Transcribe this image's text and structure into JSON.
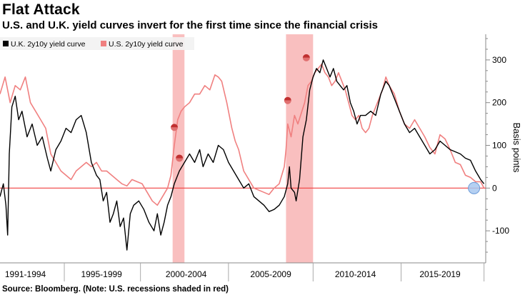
{
  "header": {
    "title": "Flat Attack",
    "subtitle": "U.S. and U.K. yield curves invert for the first time since the financial crisis"
  },
  "footer": {
    "source": "Source: Bloomberg. (Note: U.S. recessions shaded in red)"
  },
  "colors": {
    "uk_series": "#000000",
    "us_series": "#f08080",
    "recession": "#f8b4b4",
    "zero_line": "#f04040",
    "marker": "#c03030",
    "highlight": "#a8c8f0"
  },
  "chart_data": {
    "type": "line",
    "ylabel": "Basis points",
    "ylim": [
      -175,
      360
    ],
    "xlim": [
      1991.0,
      2019.7
    ],
    "yticks": [
      300,
      200,
      100,
      0,
      -100
    ],
    "ytick_labels": [
      "300",
      "200",
      "100",
      "0",
      "-100"
    ],
    "xtick_labels": [
      "1991-1994",
      "1995-1999",
      "2000-2004",
      "2005-2009",
      "2010-2014",
      "2015-2019"
    ],
    "xtick_centers": [
      1992.5,
      1997.0,
      2002.0,
      2007.0,
      2012.0,
      2017.0
    ],
    "xtick_boundaries": [
      1994.8,
      1999.3,
      2004.5,
      2009.5,
      2014.7,
      2019.6
    ],
    "legend": [
      "U.K. 2y10y yield curve",
      "U.S. 2y10y yield curve"
    ],
    "legend_position": "top-left",
    "recessions": [
      [
        2001.2,
        2001.9
      ],
      [
        2007.9,
        2009.5
      ]
    ],
    "event_markers": [
      {
        "x": 2001.3,
        "y": 142
      },
      {
        "x": 2001.6,
        "y": 70
      },
      {
        "x": 2008.0,
        "y": 205
      },
      {
        "x": 2009.1,
        "y": 305
      }
    ],
    "highlight_point": {
      "x": 2019.6,
      "y": 0
    },
    "series": [
      {
        "name": "U.K. 2y10y yield curve",
        "points": [
          [
            1991.0,
            -20
          ],
          [
            1991.2,
            10
          ],
          [
            1991.35,
            -40
          ],
          [
            1991.45,
            -110
          ],
          [
            1991.55,
            80
          ],
          [
            1991.7,
            190
          ],
          [
            1991.9,
            215
          ],
          [
            1992.1,
            160
          ],
          [
            1992.3,
            180
          ],
          [
            1992.6,
            120
          ],
          [
            1992.9,
            150
          ],
          [
            1993.2,
            100
          ],
          [
            1993.5,
            120
          ],
          [
            1993.8,
            70
          ],
          [
            1994.0,
            40
          ],
          [
            1994.3,
            90
          ],
          [
            1994.6,
            110
          ],
          [
            1994.9,
            140
          ],
          [
            1995.2,
            130
          ],
          [
            1995.5,
            160
          ],
          [
            1995.8,
            170
          ],
          [
            1996.1,
            130
          ],
          [
            1996.4,
            60
          ],
          [
            1996.7,
            30
          ],
          [
            1996.9,
            20
          ],
          [
            1997.1,
            -30
          ],
          [
            1997.3,
            -10
          ],
          [
            1997.5,
            -80
          ],
          [
            1997.7,
            -60
          ],
          [
            1997.9,
            -30
          ],
          [
            1998.1,
            -90
          ],
          [
            1998.3,
            -70
          ],
          [
            1998.5,
            -145
          ],
          [
            1998.7,
            -60
          ],
          [
            1998.9,
            -40
          ],
          [
            1999.2,
            -30
          ],
          [
            1999.5,
            -50
          ],
          [
            1999.8,
            -80
          ],
          [
            2000.1,
            -100
          ],
          [
            2000.3,
            -60
          ],
          [
            2000.5,
            -110
          ],
          [
            2000.7,
            -80
          ],
          [
            2000.9,
            -40
          ],
          [
            2001.1,
            -20
          ],
          [
            2001.3,
            10
          ],
          [
            2001.6,
            40
          ],
          [
            2001.9,
            60
          ],
          [
            2002.2,
            80
          ],
          [
            2002.5,
            60
          ],
          [
            2002.8,
            90
          ],
          [
            2003.0,
            50
          ],
          [
            2003.3,
            80
          ],
          [
            2003.6,
            60
          ],
          [
            2003.9,
            100
          ],
          [
            2004.2,
            90
          ],
          [
            2004.5,
            60
          ],
          [
            2004.8,
            40
          ],
          [
            2005.1,
            20
          ],
          [
            2005.4,
            0
          ],
          [
            2005.7,
            10
          ],
          [
            2006.0,
            -20
          ],
          [
            2006.3,
            -30
          ],
          [
            2006.6,
            -40
          ],
          [
            2006.9,
            -55
          ],
          [
            2007.2,
            -50
          ],
          [
            2007.5,
            -40
          ],
          [
            2007.8,
            -20
          ],
          [
            2008.0,
            10
          ],
          [
            2008.1,
            50
          ],
          [
            2008.2,
            0
          ],
          [
            2008.4,
            -10
          ],
          [
            2008.5,
            -30
          ],
          [
            2008.7,
            20
          ],
          [
            2008.9,
            120
          ],
          [
            2009.1,
            160
          ],
          [
            2009.3,
            230
          ],
          [
            2009.5,
            260
          ],
          [
            2009.7,
            280
          ],
          [
            2009.9,
            270
          ],
          [
            2010.1,
            300
          ],
          [
            2010.3,
            280
          ],
          [
            2010.5,
            260
          ],
          [
            2010.7,
            280
          ],
          [
            2010.9,
            250
          ],
          [
            2011.1,
            240
          ],
          [
            2011.3,
            230
          ],
          [
            2011.5,
            240
          ],
          [
            2011.7,
            200
          ],
          [
            2011.9,
            180
          ],
          [
            2012.1,
            150
          ],
          [
            2012.3,
            170
          ],
          [
            2012.6,
            170
          ],
          [
            2012.9,
            180
          ],
          [
            2013.2,
            170
          ],
          [
            2013.5,
            220
          ],
          [
            2013.8,
            250
          ],
          [
            2014.0,
            240
          ],
          [
            2014.3,
            210
          ],
          [
            2014.6,
            180
          ],
          [
            2014.9,
            150
          ],
          [
            2015.2,
            130
          ],
          [
            2015.5,
            140
          ],
          [
            2015.8,
            120
          ],
          [
            2016.1,
            100
          ],
          [
            2016.4,
            80
          ],
          [
            2016.7,
            90
          ],
          [
            2017.0,
            110
          ],
          [
            2017.3,
            100
          ],
          [
            2017.6,
            90
          ],
          [
            2017.9,
            85
          ],
          [
            2018.2,
            80
          ],
          [
            2018.5,
            70
          ],
          [
            2018.8,
            65
          ],
          [
            2019.1,
            40
          ],
          [
            2019.4,
            20
          ],
          [
            2019.6,
            10
          ]
        ]
      },
      {
        "name": "U.S. 2y10y yield curve",
        "points": [
          [
            1991.0,
            220
          ],
          [
            1991.3,
            260
          ],
          [
            1991.6,
            200
          ],
          [
            1991.9,
            240
          ],
          [
            1992.2,
            230
          ],
          [
            1992.5,
            260
          ],
          [
            1992.8,
            200
          ],
          [
            1993.1,
            180
          ],
          [
            1993.4,
            160
          ],
          [
            1993.7,
            140
          ],
          [
            1994.0,
            80
          ],
          [
            1994.3,
            60
          ],
          [
            1994.6,
            40
          ],
          [
            1994.9,
            30
          ],
          [
            1995.2,
            20
          ],
          [
            1995.5,
            40
          ],
          [
            1995.8,
            50
          ],
          [
            1996.1,
            60
          ],
          [
            1996.4,
            50
          ],
          [
            1996.7,
            60
          ],
          [
            1997.0,
            40
          ],
          [
            1997.3,
            40
          ],
          [
            1997.6,
            30
          ],
          [
            1997.9,
            20
          ],
          [
            1998.2,
            10
          ],
          [
            1998.5,
            5
          ],
          [
            1998.8,
            20
          ],
          [
            1999.1,
            15
          ],
          [
            1999.4,
            10
          ],
          [
            1999.7,
            -10
          ],
          [
            2000.0,
            -30
          ],
          [
            2000.3,
            -40
          ],
          [
            2000.6,
            -20
          ],
          [
            2000.9,
            0
          ],
          [
            2001.1,
            30
          ],
          [
            2001.3,
            100
          ],
          [
            2001.5,
            160
          ],
          [
            2001.7,
            180
          ],
          [
            2001.9,
            190
          ],
          [
            2002.2,
            200
          ],
          [
            2002.5,
            220
          ],
          [
            2002.8,
            220
          ],
          [
            2003.1,
            240
          ],
          [
            2003.4,
            230
          ],
          [
            2003.7,
            265
          ],
          [
            2003.9,
            260
          ],
          [
            2004.1,
            250
          ],
          [
            2004.4,
            200
          ],
          [
            2004.7,
            140
          ],
          [
            2004.9,
            110
          ],
          [
            2005.1,
            90
          ],
          [
            2005.4,
            40
          ],
          [
            2005.7,
            20
          ],
          [
            2006.0,
            0
          ],
          [
            2006.3,
            -5
          ],
          [
            2006.6,
            -10
          ],
          [
            2006.9,
            -15
          ],
          [
            2007.2,
            0
          ],
          [
            2007.5,
            10
          ],
          [
            2007.8,
            50
          ],
          [
            2007.9,
            90
          ],
          [
            2008.0,
            150
          ],
          [
            2008.2,
            120
          ],
          [
            2008.4,
            170
          ],
          [
            2008.6,
            150
          ],
          [
            2008.8,
            175
          ],
          [
            2009.0,
            200
          ],
          [
            2009.2,
            240
          ],
          [
            2009.4,
            250
          ],
          [
            2009.6,
            270
          ],
          [
            2009.8,
            280
          ],
          [
            2010.0,
            290
          ],
          [
            2010.2,
            270
          ],
          [
            2010.4,
            260
          ],
          [
            2010.6,
            240
          ],
          [
            2010.8,
            250
          ],
          [
            2011.0,
            270
          ],
          [
            2011.2,
            250
          ],
          [
            2011.4,
            230
          ],
          [
            2011.6,
            200
          ],
          [
            2011.8,
            170
          ],
          [
            2012.0,
            160
          ],
          [
            2012.2,
            170
          ],
          [
            2012.4,
            140
          ],
          [
            2012.6,
            130
          ],
          [
            2012.8,
            140
          ],
          [
            2013.0,
            170
          ],
          [
            2013.3,
            200
          ],
          [
            2013.6,
            230
          ],
          [
            2013.8,
            260
          ],
          [
            2014.0,
            240
          ],
          [
            2014.3,
            220
          ],
          [
            2014.6,
            180
          ],
          [
            2014.9,
            150
          ],
          [
            2015.2,
            140
          ],
          [
            2015.5,
            160
          ],
          [
            2015.8,
            140
          ],
          [
            2016.1,
            120
          ],
          [
            2016.4,
            95
          ],
          [
            2016.7,
            80
          ],
          [
            2017.0,
            125
          ],
          [
            2017.3,
            115
          ],
          [
            2017.6,
            90
          ],
          [
            2017.9,
            60
          ],
          [
            2018.2,
            55
          ],
          [
            2018.5,
            30
          ],
          [
            2018.8,
            25
          ],
          [
            2019.1,
            15
          ],
          [
            2019.4,
            15
          ],
          [
            2019.6,
            0
          ]
        ]
      }
    ]
  }
}
